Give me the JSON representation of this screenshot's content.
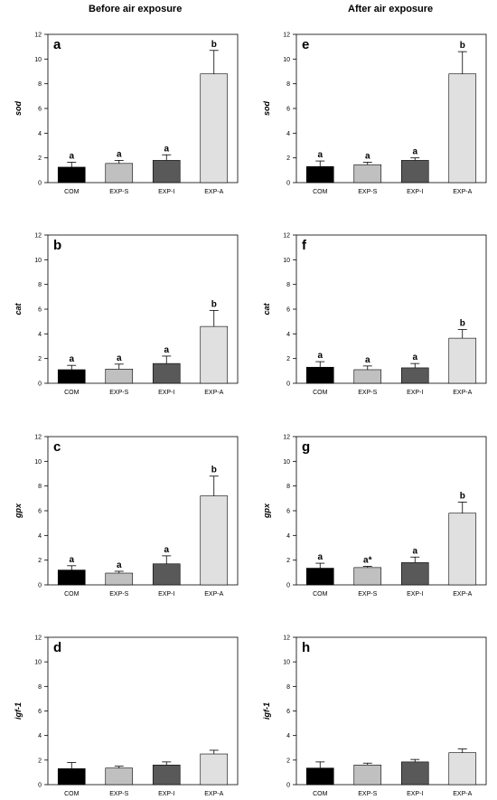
{
  "column_titles": [
    "Before air exposure",
    "After air exposure"
  ],
  "colors": {
    "COM": "#000000",
    "EXP-S": "#c0c0c0",
    "EXP-I": "#595959",
    "EXP-A": "#e0e0e0"
  },
  "chart_data": [
    {
      "type": "bar",
      "panel": "a",
      "ylabel": "sod",
      "column": "Before air exposure",
      "categories": [
        "COM",
        "EXP-S",
        "EXP-I",
        "EXP-A"
      ],
      "values": [
        1.25,
        1.55,
        1.8,
        8.8
      ],
      "errors": [
        0.4,
        0.25,
        0.45,
        1.9
      ],
      "letters": [
        "a",
        "a",
        "a",
        "b"
      ],
      "ylim": [
        0,
        12
      ]
    },
    {
      "type": "bar",
      "panel": "e",
      "ylabel": "sod",
      "column": "After air exposure",
      "categories": [
        "COM",
        "EXP-S",
        "EXP-I",
        "EXP-A"
      ],
      "values": [
        1.3,
        1.45,
        1.8,
        8.8
      ],
      "errors": [
        0.45,
        0.2,
        0.2,
        1.8
      ],
      "letters": [
        "a",
        "a",
        "a",
        "b"
      ],
      "ylim": [
        0,
        12
      ]
    },
    {
      "type": "bar",
      "panel": "b",
      "ylabel": "cat",
      "column": "Before air exposure",
      "categories": [
        "COM",
        "EXP-S",
        "EXP-I",
        "EXP-A"
      ],
      "values": [
        1.1,
        1.15,
        1.6,
        4.6
      ],
      "errors": [
        0.35,
        0.4,
        0.6,
        1.3
      ],
      "letters": [
        "a",
        "a",
        "a",
        "b"
      ],
      "ylim": [
        0,
        12
      ]
    },
    {
      "type": "bar",
      "panel": "f",
      "ylabel": "cat",
      "column": "After air exposure",
      "categories": [
        "COM",
        "EXP-S",
        "EXP-I",
        "EXP-A"
      ],
      "values": [
        1.3,
        1.1,
        1.25,
        3.65
      ],
      "errors": [
        0.45,
        0.3,
        0.35,
        0.7
      ],
      "letters": [
        "a",
        "a",
        "a",
        "b"
      ],
      "ylim": [
        0,
        12
      ]
    },
    {
      "type": "bar",
      "panel": "c",
      "ylabel": "gpx",
      "column": "Before air exposure",
      "categories": [
        "COM",
        "EXP-S",
        "EXP-I",
        "EXP-A"
      ],
      "values": [
        1.2,
        0.95,
        1.7,
        7.2
      ],
      "errors": [
        0.35,
        0.15,
        0.65,
        1.6
      ],
      "letters": [
        "a",
        "a",
        "a",
        "b"
      ],
      "ylim": [
        0,
        12
      ]
    },
    {
      "type": "bar",
      "panel": "g",
      "ylabel": "gpx",
      "column": "After air exposure",
      "categories": [
        "COM",
        "EXP-S",
        "EXP-I",
        "EXP-A"
      ],
      "values": [
        1.35,
        1.4,
        1.8,
        5.8
      ],
      "errors": [
        0.4,
        0.1,
        0.45,
        0.9
      ],
      "letters": [
        "a",
        "a*",
        "a",
        "b"
      ],
      "ylim": [
        0,
        12
      ]
    },
    {
      "type": "bar",
      "panel": "d",
      "ylabel": "igf-1",
      "column": "Before air exposure",
      "categories": [
        "COM",
        "EXP-S",
        "EXP-I",
        "EXP-A"
      ],
      "values": [
        1.3,
        1.35,
        1.6,
        2.5
      ],
      "errors": [
        0.5,
        0.15,
        0.25,
        0.3
      ],
      "letters": [
        "",
        "",
        "",
        ""
      ],
      "ylim": [
        0,
        12
      ]
    },
    {
      "type": "bar",
      "panel": "h",
      "ylabel": "igf-1",
      "column": "After air exposure",
      "categories": [
        "COM",
        "EXP-S",
        "EXP-I",
        "EXP-A"
      ],
      "values": [
        1.35,
        1.6,
        1.85,
        2.6
      ],
      "errors": [
        0.5,
        0.15,
        0.2,
        0.3
      ],
      "letters": [
        "",
        "",
        "",
        ""
      ],
      "ylim": [
        0,
        12
      ]
    }
  ]
}
